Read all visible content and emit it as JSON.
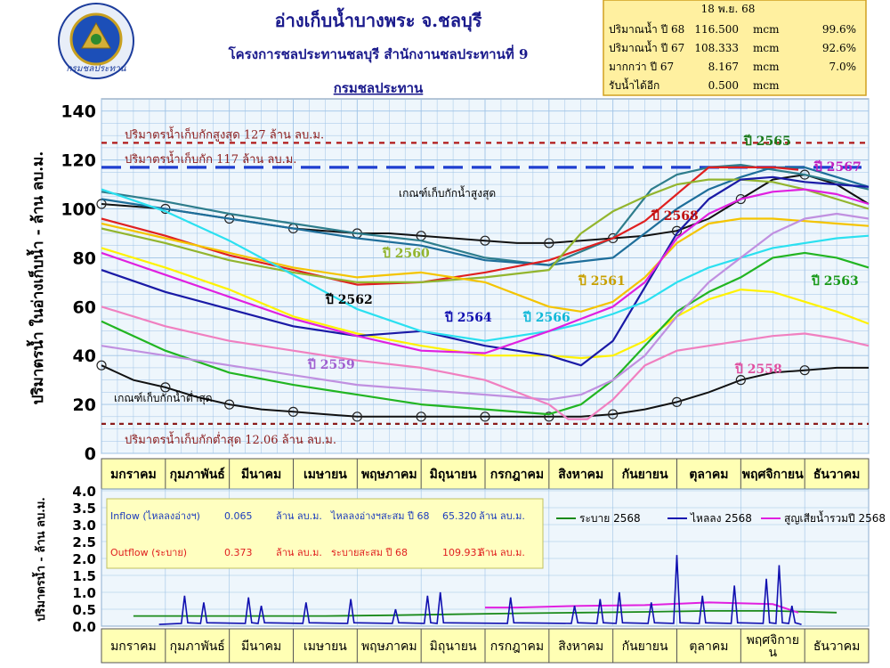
{
  "header": {
    "title": "อ่างเก็บน้ำบางพระ จ.ชลบุรี",
    "subtitle": "โครงการชลประทานชลบุรี สำนักงานชลประทานที่ 9",
    "org": "กรมชลประทาน",
    "logo_text": "กรมชลประทาน"
  },
  "summary": {
    "date": "18 พ.ย. 68",
    "rows": [
      {
        "label": "ปริมาณน้ำ ปี  68",
        "value": "116.500",
        "unit": "mcm",
        "pct": "99.6%"
      },
      {
        "label": "ปริมาณน้ำ ปี  67",
        "value": "108.333",
        "unit": "mcm",
        "pct": "92.6%"
      },
      {
        "label": "มากกว่า ปี  67",
        "value": "8.167",
        "unit": "mcm",
        "pct": "7.0%"
      },
      {
        "label": "รับน้ำได้อีก",
        "value": "0.500",
        "unit": "mcm",
        "pct": ""
      }
    ]
  },
  "colors": {
    "plot_bg": "#EEF6FC",
    "grid": "#9FC3E6",
    "month_bar": "#FFFFB4",
    "info_box": "#FFFFC0",
    "max_line": "#B01818",
    "normal_line": "#1F3FD0",
    "min_line": "#8B1C1C"
  },
  "chart_data": [
    {
      "type": "line",
      "ylabel": "ปริมาตรน้ำ ในอ่างเก็บน้ำ - ล้าน ลบ.ม.",
      "ylim": [
        0,
        145
      ],
      "yticks": [
        "0",
        "20",
        "40",
        "60",
        "80",
        "100",
        "120",
        "140"
      ],
      "categories": [
        "มกราคม",
        "กุมภาพันธ์",
        "มีนาคม",
        "เมษายน",
        "พฤษภาคม",
        "มิถุนายน",
        "กรกฎาคม",
        "สิงหาคม",
        "กันยายน",
        "ตุลาคม",
        "พฤศจิกายน",
        "ธันวาคม"
      ],
      "grid": true,
      "reference_lines": [
        {
          "label": "ปริมาตรน้ำเก็บกักสูงสุด 127 ล้าน ลบ.ม.",
          "value": 127
        },
        {
          "label": "ปริมาตรน้ำเก็บกัก  117 ล้าน ลบ.ม.",
          "value": 117
        },
        {
          "label": "ปริมาตรน้ำเก็บกักต่ำสุด  12.06 ล้าน ลบ.ม.",
          "value": 12.06
        }
      ],
      "rule_curves": [
        {
          "name": "เกณฑ์เก็บกักน้ำสูงสุด",
          "x": [
            0,
            0.5,
            1,
            1.5,
            2,
            2.5,
            3,
            3.5,
            4,
            4.5,
            5,
            5.5,
            6,
            6.5,
            7,
            7.5,
            8,
            8.5,
            9,
            9.5,
            10,
            10.5,
            11,
            11.5,
            12
          ],
          "values": [
            102,
            101,
            100,
            98,
            96,
            94,
            92,
            91,
            90,
            90,
            89,
            88,
            87,
            86,
            86,
            87,
            88,
            89,
            91,
            96,
            104,
            112,
            114,
            110,
            102
          ]
        },
        {
          "name": "เกณฑ์เก็บกักน้ำต่ำสุด",
          "x": [
            0,
            0.5,
            1,
            1.5,
            2,
            2.5,
            3,
            3.5,
            4,
            4.5,
            5,
            5.5,
            6,
            6.5,
            7,
            7.5,
            8,
            8.5,
            9,
            9.5,
            10,
            10.5,
            11,
            11.5,
            12
          ],
          "values": [
            36,
            30,
            27,
            23,
            20,
            18,
            17,
            16,
            15,
            15,
            15,
            15,
            15,
            15,
            15,
            15,
            16,
            18,
            21,
            25,
            30,
            33,
            34,
            35,
            35
          ]
        }
      ],
      "series": [
        {
          "name": "ปี 2565",
          "color": "#2E7D8C",
          "x": [
            0,
            1,
            2,
            3,
            4,
            5,
            6,
            7,
            8,
            8.6,
            9,
            9.5,
            10,
            10.5,
            11,
            11.5,
            12
          ],
          "values": [
            107,
            103,
            98,
            94,
            90,
            87,
            80,
            77,
            88,
            108,
            114,
            117,
            118,
            116,
            114,
            111,
            108
          ]
        },
        {
          "name": "ปี 2567",
          "color": "#1E6E9A",
          "x": [
            0,
            1,
            2,
            3,
            4,
            5,
            6,
            7,
            8,
            9,
            9.5,
            10,
            10.5,
            11,
            11.5,
            12
          ],
          "values": [
            104,
            100,
            96,
            92,
            88,
            85,
            79,
            77,
            80,
            100,
            108,
            113,
            117,
            117,
            113,
            109
          ]
        },
        {
          "name": "ปี 2568",
          "color": "#E02020",
          "x": [
            0,
            1,
            2,
            3,
            4,
            5,
            6,
            7,
            8,
            8.5,
            9,
            9.5,
            10,
            10.5,
            10.9
          ],
          "values": [
            96,
            89,
            81,
            75,
            69,
            70,
            74,
            79,
            88,
            95,
            106,
            117,
            117,
            117,
            116
          ]
        },
        {
          "name": "ปี 2560",
          "color": "#93B52E",
          "x": [
            0,
            1,
            2,
            3,
            4,
            5,
            6,
            7,
            7.5,
            8,
            8.5,
            9,
            9.5,
            10,
            10.5,
            11,
            11.5,
            12
          ],
          "values": [
            92,
            86,
            79,
            74,
            70,
            70,
            72,
            75,
            90,
            99,
            105,
            110,
            112,
            112,
            111,
            108,
            104,
            100
          ]
        },
        {
          "name": "ปี 2561",
          "color": "#F4C400",
          "x": [
            0,
            1,
            2,
            3,
            4,
            5,
            6,
            7,
            7.5,
            8,
            8.5,
            9,
            9.5,
            10,
            10.5,
            11,
            11.5,
            12
          ],
          "values": [
            94,
            88,
            82,
            76,
            72,
            74,
            70,
            60,
            58,
            62,
            72,
            86,
            94,
            96,
            96,
            95,
            94,
            93
          ]
        },
        {
          "name": "ปี 2562",
          "color": "#FFF200",
          "x": [
            0,
            1,
            2,
            3,
            4,
            5,
            6,
            7,
            7.5,
            8,
            8.5,
            9,
            9.5,
            10,
            10.5,
            11,
            11.5,
            12
          ],
          "values": [
            84,
            76,
            67,
            56,
            49,
            44,
            40,
            40,
            39,
            40,
            46,
            56,
            63,
            67,
            66,
            62,
            58,
            53
          ]
        },
        {
          "name": "ปี 2564",
          "color": "#1A1AA6",
          "x": [
            0,
            1,
            2,
            3,
            4,
            5,
            6,
            7,
            7.5,
            8,
            8.5,
            9,
            9.5,
            10,
            10.5,
            11,
            11.5,
            12
          ],
          "values": [
            75,
            66,
            59,
            52,
            48,
            50,
            44,
            40,
            36,
            46,
            68,
            90,
            104,
            112,
            113,
            111,
            110,
            109
          ]
        },
        {
          "name": "ปี 2566",
          "color": "#2BE0F0",
          "x": [
            0,
            1,
            2,
            3,
            4,
            5,
            6,
            7,
            7.5,
            8,
            8.5,
            9,
            9.5,
            10,
            10.5,
            11,
            11.5,
            12
          ],
          "values": [
            108,
            99,
            87,
            73,
            59,
            50,
            46,
            50,
            53,
            57,
            62,
            70,
            76,
            80,
            84,
            86,
            88,
            89
          ]
        },
        {
          "name": "ปี 2568 (สูง)",
          "color": "#E020E0",
          "x": [
            0,
            1,
            2,
            3,
            4,
            5,
            6,
            7,
            7.5,
            8,
            8.5,
            9,
            9.5,
            10,
            10.5,
            11,
            11.5,
            12
          ],
          "values": [
            82,
            73,
            64,
            55,
            48,
            42,
            41,
            50,
            55,
            60,
            70,
            88,
            98,
            104,
            107,
            108,
            106,
            102
          ]
        },
        {
          "name": "ปี 2563",
          "color": "#22B522",
          "x": [
            0,
            1,
            2,
            3,
            4,
            5,
            6,
            7,
            7.5,
            8,
            8.5,
            9,
            9.5,
            10,
            10.5,
            11,
            11.5,
            12
          ],
          "values": [
            54,
            42,
            33,
            28,
            24,
            20,
            18,
            16,
            20,
            30,
            44,
            58,
            66,
            72,
            80,
            82,
            80,
            76
          ]
        },
        {
          "name": "ปี 2559",
          "color": "#C090E0",
          "x": [
            0,
            1,
            2,
            3,
            4,
            5,
            6,
            7,
            7.5,
            8,
            8.5,
            9,
            9.5,
            10,
            10.5,
            11,
            11.5,
            12
          ],
          "values": [
            44,
            40,
            36,
            32,
            28,
            26,
            24,
            22,
            24,
            30,
            40,
            56,
            70,
            80,
            90,
            96,
            98,
            96
          ]
        },
        {
          "name": "ปี 2558",
          "color": "#F080C0",
          "x": [
            0,
            1,
            2,
            3,
            4,
            5,
            6,
            7,
            7.3,
            7.6,
            8,
            8.5,
            9,
            9.5,
            10,
            10.5,
            11,
            11.5,
            12
          ],
          "values": [
            60,
            52,
            46,
            42,
            38,
            35,
            30,
            20,
            14,
            14,
            22,
            36,
            42,
            44,
            46,
            48,
            49,
            47,
            44
          ]
        }
      ],
      "annotations": [
        "ปี 2565",
        "ปี 2567",
        "ปี 2568",
        "ปี 2560",
        "ปี 2561",
        "ปี 2562",
        "ปี 2564",
        "ปี 2566",
        "ปี 2563",
        "ปี 2559",
        "ปี 2558",
        "เกณฑ์เก็บกักน้ำสูงสุด",
        "เกณฑ์เก็บกักน้ำต่ำสุด"
      ]
    },
    {
      "type": "line",
      "ylabel": "ปริมาตรน้ำ - ล้าน ลบ.ม.",
      "ylim": [
        0,
        4
      ],
      "yticks": [
        "0.0",
        "0.5",
        "1.0",
        "1.5",
        "2.0",
        "2.5",
        "3.0",
        "3.5",
        "4.0"
      ],
      "categories": [
        "มกราคม",
        "กุมภาพันธ์",
        "มีนาคม",
        "เมษายน",
        "พฤษภาคม",
        "มิถุนายน",
        "กรกฎาคม",
        "สิงหาคม",
        "กันยายน",
        "ตุลาคม",
        "พฤศจิกายน",
        "ธันวาคม"
      ],
      "legend": [
        "ระบาย 2568",
        "ไหลลง 2568",
        "สูญเสียน้ำรวมปี 2568"
      ],
      "legend_colors": [
        "#1A8A1A",
        "#1010B0",
        "#E020E0"
      ],
      "outflow_level": [
        0.3,
        0.3,
        0.3,
        0.3,
        0.32,
        0.35,
        0.38,
        0.4,
        0.42,
        0.45,
        0.45,
        0.4
      ],
      "loss_level": [
        0.0,
        0.0,
        0.0,
        0.0,
        0.0,
        0.0,
        0.55,
        0.6,
        0.62,
        0.7,
        0.65,
        0.4
      ],
      "inflow_spikes": [
        [
          1.3,
          0.9
        ],
        [
          1.6,
          0.7
        ],
        [
          2.3,
          0.85
        ],
        [
          2.5,
          0.6
        ],
        [
          3.2,
          0.7
        ],
        [
          3.9,
          0.8
        ],
        [
          4.6,
          0.5
        ],
        [
          5.1,
          0.9
        ],
        [
          5.3,
          1.0
        ],
        [
          6.4,
          0.85
        ],
        [
          7.4,
          0.6
        ],
        [
          7.8,
          0.8
        ],
        [
          8.1,
          1.0
        ],
        [
          8.6,
          0.7
        ],
        [
          9.0,
          2.1
        ],
        [
          9.4,
          0.9
        ],
        [
          9.9,
          1.2
        ],
        [
          10.4,
          1.4
        ],
        [
          10.6,
          1.8
        ],
        [
          10.8,
          0.6
        ]
      ],
      "info": {
        "inflow_label": "Inflow (ไหลลงอ่างฯ)",
        "inflow_value": "0.065",
        "inflow_unit": "ล้าน ลบ.ม.",
        "inflow_cum_label": "ไหลลงอ่างฯสะสม ปี 68",
        "inflow_cum_value": "65.320",
        "inflow_cum_unit": "ล้าน ลบ.ม.",
        "outflow_label": "Outflow (ระบาย)",
        "outflow_value": "0.373",
        "outflow_unit": "ล้าน ลบ.ม.",
        "outflow_cum_label": "ระบายสะสม ปี 68",
        "outflow_cum_value": "109.931",
        "outflow_cum_unit": "ล้าน ลบ.ม."
      }
    }
  ],
  "months_bottom": [
    "มกราคม",
    "กุมภาพันธ์",
    "มีนาคม",
    "เมษายน",
    "พฤษภาคม",
    "มิถุนายน",
    "กรกฎาคม",
    "สิงหาคม",
    "กันยายน",
    "ตุลาคม",
    "พฤศจิกาย\nน",
    "ธันวาคม"
  ]
}
